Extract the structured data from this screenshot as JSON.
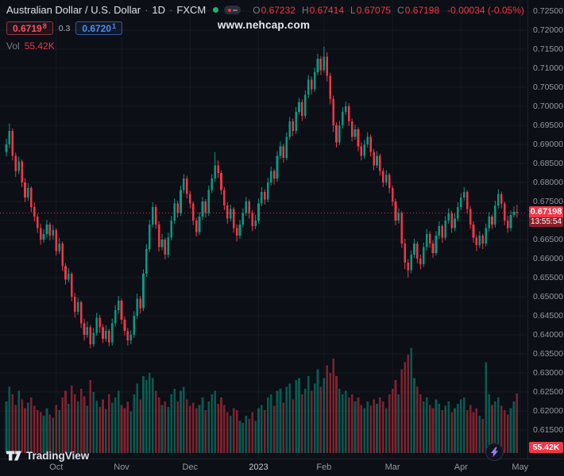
{
  "header": {
    "symbol_title": "Australian Dollar / U.S. Dollar",
    "separator": "·",
    "timeframe": "1D",
    "exchange": "FXCM",
    "ohlc": {
      "o_label": "O",
      "o": "0.67232",
      "h_label": "H",
      "h": "0.67414",
      "l_label": "L",
      "l": "0.67075",
      "c_label": "C",
      "c": "0.67198",
      "change": "-0.00034 (-0.05%)"
    },
    "sell_price": "0.6719",
    "sell_sup": "8",
    "spread": "0.3",
    "buy_price": "0.6720",
    "buy_sup": "1",
    "vol_label": "Vol",
    "vol_value": "55.42K"
  },
  "watermark": "www.nehcap.com",
  "footer": {
    "logo_text": "TradingView"
  },
  "colors": {
    "background": "#0c0f16",
    "up": "#089981",
    "down": "#f23645",
    "volume_up": "rgba(8,153,129,0.55)",
    "volume_down": "rgba(242,54,69,0.5)",
    "grid": "rgba(170,182,200,0.06)",
    "axis_text": "#9598a1",
    "sell_red": "#f7525f",
    "buy_blue": "#4e8ef7",
    "status_green": "#20b26c",
    "badge_red": "#f23645",
    "countdown_red": "#8c1e28",
    "bolt_purple": "#9f7bf0"
  },
  "chart_data": {
    "type": "candlestick",
    "title": "Australian Dollar / U.S. Dollar · 1D · FXCM",
    "ylim": [
      0.615,
      0.725
    ],
    "price_scale_divisor": 10000,
    "last_price": 0.67198,
    "last_price_label": "0.67198",
    "countdown": "13:55:54",
    "last_volume_label": "55.42K",
    "price_axis_labels": [
      "0.72500",
      "0.72000",
      "0.71500",
      "0.71000",
      "0.70500",
      "0.70000",
      "0.69500",
      "0.69000",
      "0.68500",
      "0.68000",
      "0.67500",
      "0.67000",
      "0.66500",
      "0.66000",
      "0.65500",
      "0.65000",
      "0.64500",
      "0.64000",
      "0.63500",
      "0.63000",
      "0.62500",
      "0.62000",
      "0.61500"
    ],
    "time_axis_labels": [
      {
        "label": "Oct",
        "index": 16
      },
      {
        "label": "Nov",
        "index": 37
      },
      {
        "label": "Dec",
        "index": 59
      },
      {
        "label": "2023",
        "index": 81
      },
      {
        "label": "Feb",
        "index": 102
      },
      {
        "label": "Mar",
        "index": 124
      },
      {
        "label": "Apr",
        "index": 146
      },
      {
        "label": "May",
        "index": 165
      }
    ],
    "candles": [
      [
        6880,
        6915,
        6868,
        6900
      ],
      [
        6900,
        6955,
        6890,
        6935
      ],
      [
        6935,
        6942,
        6858,
        6870
      ],
      [
        6870,
        6878,
        6815,
        6830
      ],
      [
        6830,
        6868,
        6822,
        6855
      ],
      [
        6855,
        6860,
        6788,
        6800
      ],
      [
        6800,
        6812,
        6748,
        6760
      ],
      [
        6760,
        6798,
        6752,
        6785
      ],
      [
        6785,
        6790,
        6722,
        6735
      ],
      [
        6735,
        6748,
        6698,
        6710
      ],
      [
        6710,
        6718,
        6668,
        6680
      ],
      [
        6680,
        6692,
        6636,
        6650
      ],
      [
        6650,
        6678,
        6642,
        6665
      ],
      [
        6665,
        6702,
        6655,
        6690
      ],
      [
        6690,
        6696,
        6648,
        6660
      ],
      [
        6660,
        6688,
        6650,
        6675
      ],
      [
        6675,
        6680,
        6608,
        6620
      ],
      [
        6620,
        6655,
        6612,
        6640
      ],
      [
        6640,
        6645,
        6568,
        6580
      ],
      [
        6580,
        6588,
        6532,
        6545
      ],
      [
        6545,
        6575,
        6538,
        6560
      ],
      [
        6560,
        6565,
        6488,
        6500
      ],
      [
        6500,
        6510,
        6445,
        6460
      ],
      [
        6460,
        6498,
        6452,
        6485
      ],
      [
        6485,
        6490,
        6418,
        6430
      ],
      [
        6430,
        6442,
        6385,
        6400
      ],
      [
        6400,
        6435,
        6392,
        6420
      ],
      [
        6420,
        6426,
        6365,
        6375
      ],
      [
        6375,
        6418,
        6368,
        6405
      ],
      [
        6405,
        6458,
        6398,
        6445
      ],
      [
        6445,
        6452,
        6405,
        6420
      ],
      [
        6420,
        6428,
        6378,
        6390
      ],
      [
        6390,
        6425,
        6382,
        6410
      ],
      [
        6410,
        6415,
        6370,
        6380
      ],
      [
        6380,
        6442,
        6372,
        6430
      ],
      [
        6430,
        6478,
        6422,
        6465
      ],
      [
        6465,
        6502,
        6455,
        6490
      ],
      [
        6490,
        6495,
        6428,
        6440
      ],
      [
        6440,
        6448,
        6398,
        6410
      ],
      [
        6410,
        6418,
        6372,
        6385
      ],
      [
        6385,
        6412,
        6375,
        6400
      ],
      [
        6400,
        6462,
        6392,
        6450
      ],
      [
        6450,
        6508,
        6442,
        6495
      ],
      [
        6495,
        6502,
        6455,
        6470
      ],
      [
        6470,
        6572,
        6462,
        6560
      ],
      [
        6560,
        6638,
        6552,
        6625
      ],
      [
        6625,
        6702,
        6618,
        6690
      ],
      [
        6690,
        6748,
        6682,
        6735
      ],
      [
        6735,
        6742,
        6678,
        6690
      ],
      [
        6690,
        6698,
        6618,
        6630
      ],
      [
        6630,
        6665,
        6622,
        6650
      ],
      [
        6650,
        6655,
        6598,
        6610
      ],
      [
        6610,
        6668,
        6602,
        6655
      ],
      [
        6655,
        6712,
        6648,
        6700
      ],
      [
        6700,
        6758,
        6692,
        6745
      ],
      [
        6745,
        6752,
        6708,
        6720
      ],
      [
        6720,
        6792,
        6712,
        6780
      ],
      [
        6780,
        6822,
        6772,
        6810
      ],
      [
        6810,
        6818,
        6758,
        6770
      ],
      [
        6770,
        6778,
        6732,
        6745
      ],
      [
        6745,
        6750,
        6688,
        6700
      ],
      [
        6700,
        6708,
        6658,
        6670
      ],
      [
        6670,
        6722,
        6662,
        6710
      ],
      [
        6710,
        6762,
        6702,
        6750
      ],
      [
        6750,
        6756,
        6708,
        6720
      ],
      [
        6720,
        6792,
        6712,
        6780
      ],
      [
        6780,
        6822,
        6772,
        6810
      ],
      [
        6810,
        6880,
        6802,
        6845
      ],
      [
        6845,
        6858,
        6812,
        6825
      ],
      [
        6825,
        6832,
        6768,
        6780
      ],
      [
        6780,
        6788,
        6728,
        6740
      ],
      [
        6740,
        6748,
        6692,
        6705
      ],
      [
        6705,
        6742,
        6698,
        6730
      ],
      [
        6730,
        6735,
        6668,
        6680
      ],
      [
        6680,
        6690,
        6645,
        6660
      ],
      [
        6660,
        6702,
        6652,
        6690
      ],
      [
        6690,
        6732,
        6682,
        6720
      ],
      [
        6720,
        6762,
        6712,
        6750
      ],
      [
        6750,
        6755,
        6705,
        6720
      ],
      [
        6720,
        6728,
        6672,
        6685
      ],
      [
        6685,
        6715,
        6678,
        6700
      ],
      [
        6700,
        6758,
        6692,
        6745
      ],
      [
        6745,
        6788,
        6738,
        6775
      ],
      [
        6775,
        6782,
        6742,
        6755
      ],
      [
        6755,
        6812,
        6748,
        6800
      ],
      [
        6800,
        6842,
        6792,
        6830
      ],
      [
        6830,
        6836,
        6795,
        6810
      ],
      [
        6810,
        6882,
        6802,
        6870
      ],
      [
        6870,
        6908,
        6862,
        6895
      ],
      [
        6895,
        6902,
        6852,
        6865
      ],
      [
        6865,
        6932,
        6858,
        6920
      ],
      [
        6920,
        6972,
        6912,
        6960
      ],
      [
        6960,
        6968,
        6922,
        6935
      ],
      [
        6935,
        6998,
        6928,
        6985
      ],
      [
        6985,
        7022,
        6978,
        7010
      ],
      [
        7010,
        7018,
        6962,
        6975
      ],
      [
        6975,
        7042,
        6968,
        7030
      ],
      [
        7030,
        7082,
        7022,
        7070
      ],
      [
        7070,
        7078,
        7032,
        7045
      ],
      [
        7045,
        7102,
        7038,
        7090
      ],
      [
        7090,
        7138,
        7082,
        7125
      ],
      [
        7125,
        7132,
        7082,
        7095
      ],
      [
        7095,
        7157,
        7088,
        7130
      ],
      [
        7130,
        7142,
        7065,
        7080
      ],
      [
        7080,
        7088,
        7005,
        7020
      ],
      [
        7020,
        7028,
        6932,
        6950
      ],
      [
        6950,
        6958,
        6892,
        6905
      ],
      [
        6905,
        6962,
        6898,
        6950
      ],
      [
        6950,
        6998,
        6942,
        6985
      ],
      [
        6985,
        7012,
        6978,
        7000
      ],
      [
        7000,
        7008,
        6948,
        6960
      ],
      [
        6960,
        6968,
        6908,
        6920
      ],
      [
        6920,
        6952,
        6912,
        6940
      ],
      [
        6940,
        6945,
        6882,
        6895
      ],
      [
        6895,
        6905,
        6858,
        6870
      ],
      [
        6870,
        6912,
        6862,
        6900
      ],
      [
        6900,
        6932,
        6892,
        6920
      ],
      [
        6920,
        6926,
        6868,
        6880
      ],
      [
        6880,
        6888,
        6832,
        6845
      ],
      [
        6845,
        6882,
        6838,
        6870
      ],
      [
        6870,
        6876,
        6818,
        6830
      ],
      [
        6830,
        6838,
        6788,
        6800
      ],
      [
        6800,
        6832,
        6792,
        6820
      ],
      [
        6820,
        6825,
        6772,
        6785
      ],
      [
        6785,
        6792,
        6738,
        6750
      ],
      [
        6750,
        6758,
        6688,
        6700
      ],
      [
        6700,
        6732,
        6692,
        6720
      ],
      [
        6720,
        6725,
        6628,
        6640
      ],
      [
        6640,
        6652,
        6572,
        6590
      ],
      [
        6590,
        6598,
        6550,
        6570
      ],
      [
        6570,
        6622,
        6562,
        6610
      ],
      [
        6610,
        6652,
        6602,
        6640
      ],
      [
        6640,
        6645,
        6588,
        6600
      ],
      [
        6600,
        6610,
        6572,
        6585
      ],
      [
        6585,
        6642,
        6578,
        6630
      ],
      [
        6630,
        6678,
        6622,
        6665
      ],
      [
        6665,
        6672,
        6628,
        6640
      ],
      [
        6640,
        6648,
        6602,
        6615
      ],
      [
        6615,
        6672,
        6608,
        6660
      ],
      [
        6660,
        6698,
        6652,
        6685
      ],
      [
        6685,
        6690,
        6642,
        6655
      ],
      [
        6655,
        6712,
        6648,
        6700
      ],
      [
        6700,
        6732,
        6692,
        6720
      ],
      [
        6720,
        6726,
        6668,
        6680
      ],
      [
        6680,
        6718,
        6672,
        6705
      ],
      [
        6705,
        6748,
        6698,
        6735
      ],
      [
        6735,
        6772,
        6728,
        6760
      ],
      [
        6760,
        6788,
        6752,
        6775
      ],
      [
        6775,
        6780,
        6718,
        6730
      ],
      [
        6730,
        6738,
        6678,
        6690
      ],
      [
        6690,
        6698,
        6642,
        6655
      ],
      [
        6655,
        6662,
        6620,
        6635
      ],
      [
        6635,
        6672,
        6628,
        6660
      ],
      [
        6660,
        6665,
        6625,
        6640
      ],
      [
        6640,
        6692,
        6632,
        6680
      ],
      [
        6680,
        6722,
        6672,
        6710
      ],
      [
        6710,
        6716,
        6678,
        6690
      ],
      [
        6690,
        6752,
        6682,
        6740
      ],
      [
        6740,
        6782,
        6732,
        6770
      ],
      [
        6770,
        6776,
        6732,
        6745
      ],
      [
        6745,
        6750,
        6688,
        6700
      ],
      [
        6700,
        6712,
        6668,
        6680
      ],
      [
        6680,
        6726,
        6672,
        6715
      ],
      [
        6715,
        6738,
        6708,
        6723.2
      ],
      [
        6723.2,
        6741.4,
        6707.5,
        6719.8
      ]
    ],
    "volumes_k": [
      48,
      62,
      55,
      45,
      58,
      50,
      42,
      47,
      52,
      44,
      40,
      38,
      35,
      42,
      36,
      33,
      45,
      40,
      52,
      58,
      46,
      63,
      55,
      48,
      60,
      53,
      44,
      68,
      57,
      49,
      43,
      50,
      41,
      55,
      47,
      52,
      58,
      45,
      42,
      48,
      39,
      55,
      65,
      50,
      72,
      68,
      75,
      70,
      58,
      52,
      45,
      48,
      43,
      55,
      60,
      48,
      58,
      62,
      50,
      44,
      47,
      42,
      45,
      52,
      40,
      48,
      55,
      58,
      46,
      52,
      45,
      38,
      35,
      42,
      40,
      30,
      28,
      35,
      32,
      38,
      30,
      42,
      45,
      40,
      52,
      55,
      44,
      58,
      60,
      47,
      62,
      65,
      50,
      68,
      70,
      55,
      60,
      72,
      58,
      65,
      78,
      62,
      70,
      82,
      75,
      88,
      72,
      60,
      55,
      58,
      52,
      55,
      48,
      52,
      45,
      42,
      48,
      44,
      50,
      46,
      52,
      48,
      42,
      55,
      60,
      68,
      55,
      78,
      85,
      92,
      98,
      70,
      62,
      55,
      48,
      52,
      45,
      42,
      50,
      46,
      40,
      44,
      48,
      38,
      42,
      46,
      50,
      52,
      40,
      45,
      38,
      42,
      35,
      32,
      85,
      55,
      45,
      48,
      52,
      44,
      40,
      36,
      42,
      48,
      55.42
    ]
  }
}
